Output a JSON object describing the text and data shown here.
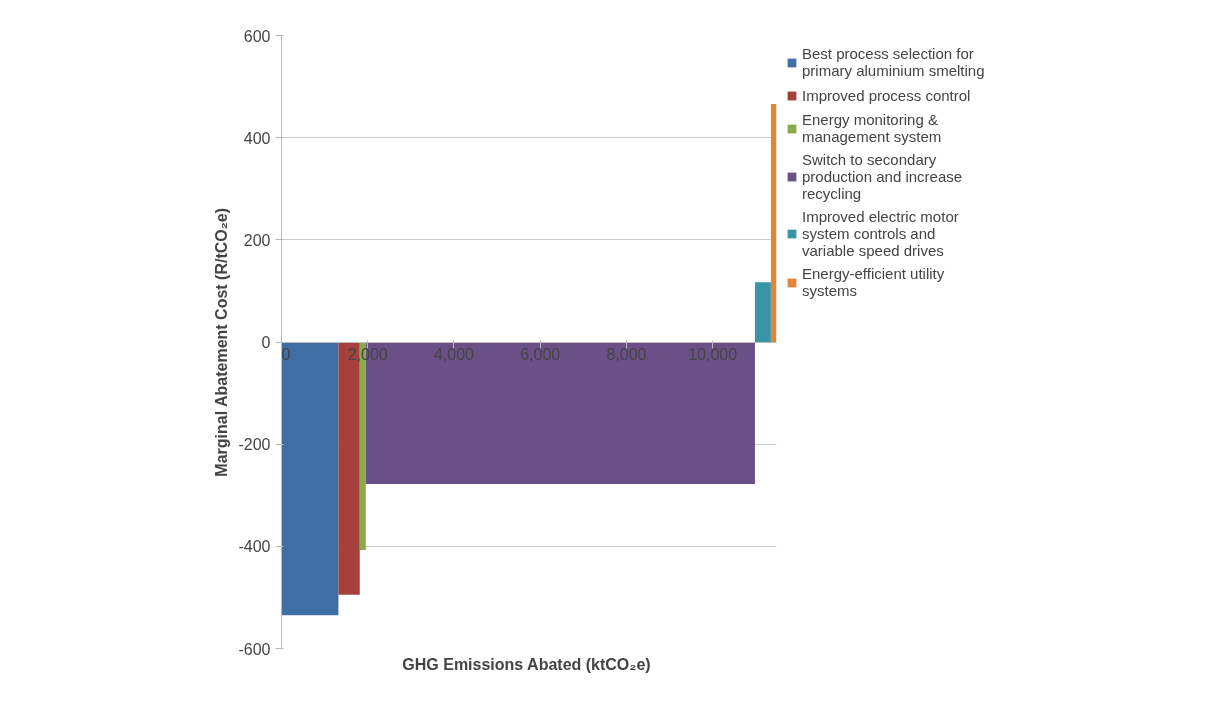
{
  "chart_data": {
    "type": "area",
    "xlabel": "GHG  Emissions Abated (ktCO₂e)",
    "ylabel": "Marginal Abatement Cost (R/tCO₂e)",
    "xlim": [
      0,
      11480
    ],
    "xticks": [
      {
        "value": 0,
        "label": "0"
      },
      {
        "value": 2000,
        "label": "2,000"
      },
      {
        "value": 4000,
        "label": "4,000"
      },
      {
        "value": 6000,
        "label": "6,000"
      },
      {
        "value": 8000,
        "label": "8,000"
      },
      {
        "value": 10000,
        "label": "10,000"
      }
    ],
    "ylim": [
      -600,
      600
    ],
    "yticks": [
      -600,
      -400,
      -200,
      0,
      200,
      400,
      600
    ],
    "grid": "y",
    "legend": "right",
    "series": [
      {
        "name": "Best process selection for primary aluminium smelting",
        "color": "#3f6ea5",
        "x": [
          0,
          1320
        ],
        "values": [
          -535,
          -535
        ]
      },
      {
        "name": "Improved process control",
        "color": "#a5403d",
        "x": [
          1320,
          1815
        ],
        "values": [
          -495,
          -495
        ]
      },
      {
        "name": "Energy monitoring & management system",
        "color": "#8aab4a",
        "x": [
          1815,
          1955
        ],
        "values": [
          -407,
          -407
        ]
      },
      {
        "name": "Switch to secondary production and increase recycling",
        "color": "#6b5087",
        "x": [
          1955,
          10980
        ],
        "values": [
          -278,
          -278
        ]
      },
      {
        "name": "Improved electric motor system controls and variable speed drives",
        "color": "#3a94a8",
        "x": [
          10980,
          11350
        ],
        "values": [
          117,
          117
        ]
      },
      {
        "name": "Energy-efficient utility systems",
        "color": "#e0853a",
        "x": [
          11350,
          11480
        ],
        "values": [
          466,
          466
        ]
      }
    ]
  }
}
